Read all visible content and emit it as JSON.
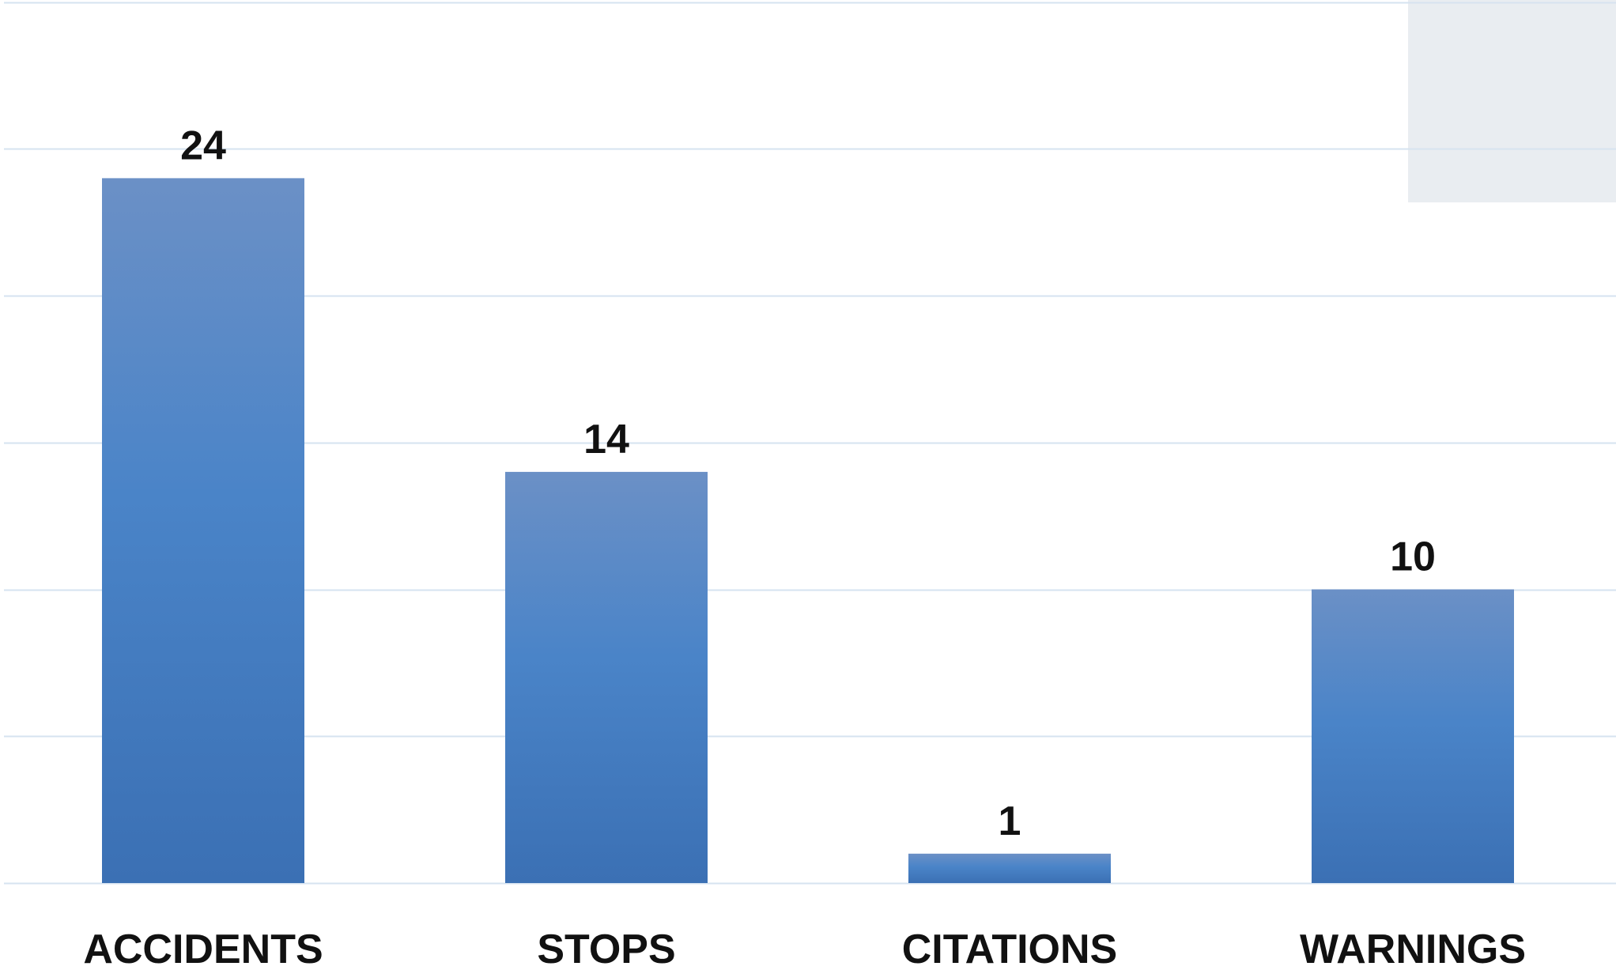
{
  "chart_data": {
    "type": "bar",
    "categories": [
      "ACCIDENTS",
      "STOPS",
      "CITATIONS",
      "WARNINGS"
    ],
    "values": [
      24,
      14,
      1,
      10
    ],
    "title": "",
    "xlabel": "",
    "ylabel": "",
    "ylim": [
      0,
      30
    ],
    "grid": true,
    "legend": "none",
    "data_labels": [
      "24",
      "14",
      "1",
      "10"
    ]
  },
  "colors": {
    "bar_top": "#6b90c6",
    "bar_bottom": "#3b70b4",
    "gridline": "#d6e3f0",
    "text": "#111111",
    "corner_box": "#e9edf1"
  }
}
